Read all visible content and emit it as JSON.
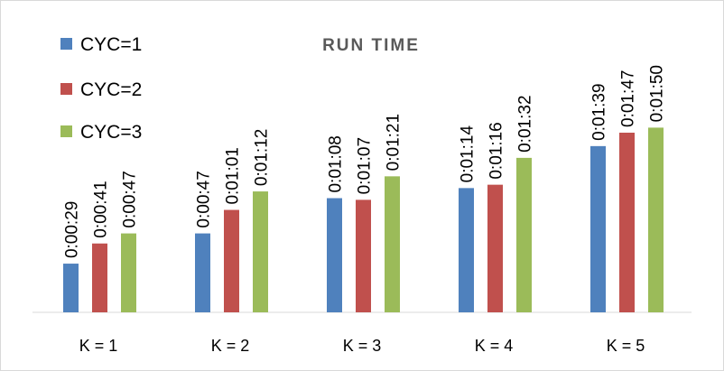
{
  "chart_data": {
    "type": "bar",
    "title": "RUN TIME",
    "xlabel": "",
    "ylabel": "",
    "categories": [
      "K = 1",
      "K = 2",
      "K = 3",
      "K = 4",
      "K = 5"
    ],
    "ylim": [
      0,
      120
    ],
    "y_unit": "seconds",
    "grid": false,
    "legend_position": "top-left",
    "series": [
      {
        "name": "CYC=1",
        "color": "#4f81bd",
        "values": [
          29,
          47,
          68,
          74,
          99
        ],
        "labels": [
          "0:00:29",
          "0:00:47",
          "0:01:08",
          "0:01:14",
          "0:01:39"
        ]
      },
      {
        "name": "CYC=2",
        "color": "#c0504d",
        "values": [
          41,
          61,
          67,
          76,
          107
        ],
        "labels": [
          "0:00:41",
          "0:01:01",
          "0:01:07",
          "0:01:16",
          "0:01:47"
        ]
      },
      {
        "name": "CYC=3",
        "color": "#9bbb59",
        "values": [
          47,
          72,
          81,
          92,
          110
        ],
        "labels": [
          "0:00:47",
          "0:01:12",
          "0:01:21",
          "0:01:32",
          "0:01:50"
        ]
      }
    ]
  }
}
